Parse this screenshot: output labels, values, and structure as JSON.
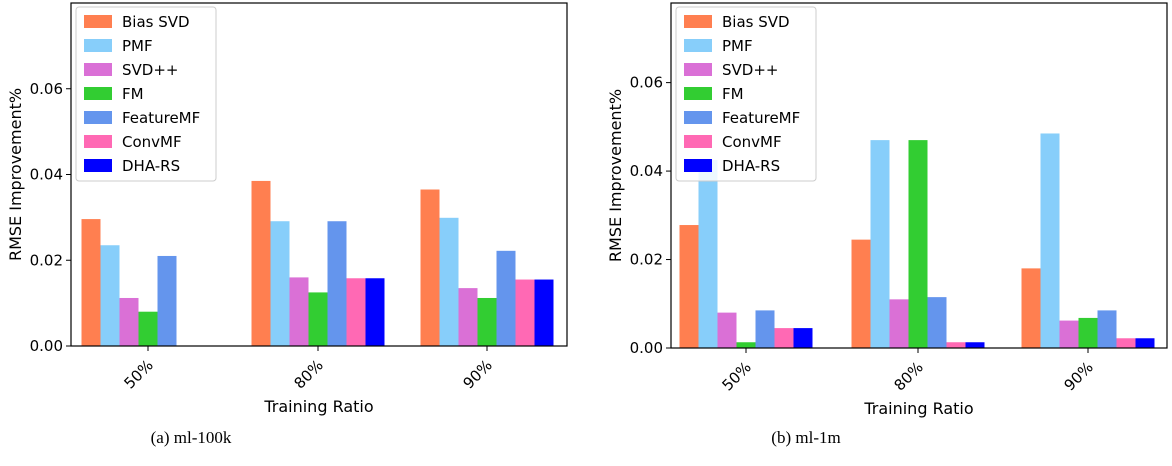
{
  "chart_data": [
    {
      "type": "bar",
      "caption": "(a)  ml-100k",
      "xlabel": "Training Ratio",
      "ylabel": "RMSE Improvement%",
      "ylim": [
        0,
        0.08
      ],
      "yticks": [
        "0.00",
        "0.02",
        "0.04",
        "0.06"
      ],
      "categories": [
        "50%",
        "80%",
        "90%"
      ],
      "legend_position": "top-left",
      "series": [
        {
          "name": "Bias SVD",
          "color": "#ff7f50",
          "values": [
            0.0296,
            0.0385,
            0.0365
          ]
        },
        {
          "name": "PMF",
          "color": "#87cefa",
          "values": [
            0.0235,
            0.0291,
            0.0299
          ]
        },
        {
          "name": "SVD++",
          "color": "#da70d6",
          "values": [
            0.0112,
            0.016,
            0.0135
          ]
        },
        {
          "name": "FM",
          "color": "#32cd32",
          "values": [
            0.008,
            0.0125,
            0.0112
          ]
        },
        {
          "name": "FeatureMF",
          "color": "#6495ed",
          "values": [
            0.021,
            0.0291,
            0.0222
          ]
        },
        {
          "name": "ConvMF",
          "color": "#ff69b4",
          "values": [
            0,
            0.0158,
            0.0155
          ]
        },
        {
          "name": "DHA-RS",
          "color": "#0000ff",
          "values": [
            0,
            0.0158,
            0.0155
          ]
        }
      ]
    },
    {
      "type": "bar",
      "caption": "(b)  ml-1m",
      "xlabel": "Training Ratio",
      "ylabel": "RMSE Improvement%",
      "ylim": [
        0,
        0.078
      ],
      "yticks": [
        "0.00",
        "0.02",
        "0.04",
        "0.06"
      ],
      "categories": [
        "50%",
        "80%",
        "90%"
      ],
      "legend_position": "top-left",
      "series": [
        {
          "name": "Bias SVD",
          "color": "#ff7f50",
          "values": [
            0.0278,
            0.0245,
            0.018
          ]
        },
        {
          "name": "PMF",
          "color": "#87cefa",
          "values": [
            0.0425,
            0.047,
            0.0485
          ]
        },
        {
          "name": "SVD++",
          "color": "#da70d6",
          "values": [
            0.008,
            0.011,
            0.0062
          ]
        },
        {
          "name": "FM",
          "color": "#32cd32",
          "values": [
            0.0013,
            0.047,
            0.0068
          ]
        },
        {
          "name": "FeatureMF",
          "color": "#6495ed",
          "values": [
            0.0085,
            0.0115,
            0.0085
          ]
        },
        {
          "name": "ConvMF",
          "color": "#ff69b4",
          "values": [
            0.0045,
            0.0013,
            0.0022
          ]
        },
        {
          "name": "DHA-RS",
          "color": "#0000ff",
          "values": [
            0.0045,
            0.0013,
            0.0022
          ]
        }
      ]
    }
  ]
}
